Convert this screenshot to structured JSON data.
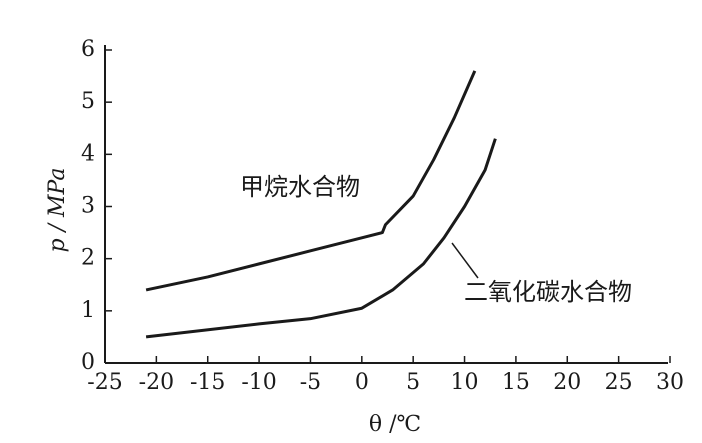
{
  "chart_data": {
    "type": "line",
    "xlabel": "θ /℃",
    "ylabel": "p / MPa",
    "xlim": [
      -25,
      30
    ],
    "xticks": [
      -25,
      -20,
      -15,
      -10,
      -5,
      0,
      5,
      10,
      15,
      20,
      25,
      30
    ],
    "ylim": [
      0,
      6
    ],
    "yticks": [
      0,
      1,
      2,
      3,
      4,
      5,
      6
    ],
    "series": [
      {
        "name": "甲烷水合物",
        "color": "#1a1a1a",
        "x": [
          -21,
          -15,
          -10,
          -5,
          0,
          2,
          2.3,
          5,
          7,
          9,
          11
        ],
        "values": [
          1.4,
          1.65,
          1.9,
          2.15,
          2.4,
          2.5,
          2.65,
          3.2,
          3.9,
          4.7,
          5.6
        ]
      },
      {
        "name": "二氧化碳水合物",
        "color": "#1a1a1a",
        "x": [
          -21,
          -10,
          -5,
          0,
          3,
          6,
          8,
          10,
          12,
          13
        ],
        "values": [
          0.5,
          0.75,
          0.85,
          1.05,
          1.4,
          1.9,
          2.4,
          3.0,
          3.7,
          4.3
        ]
      }
    ]
  }
}
